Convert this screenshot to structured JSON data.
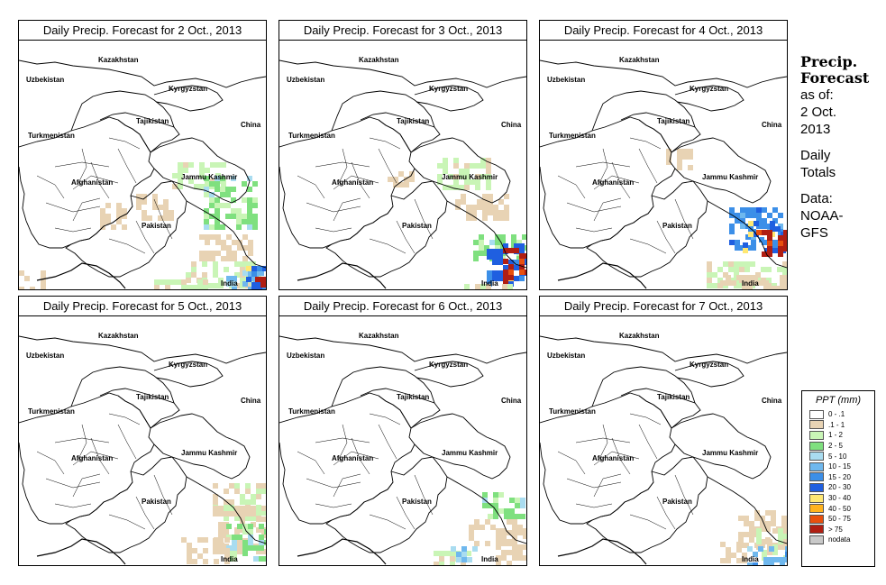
{
  "panels": [
    {
      "title": "Daily Precip. Forecast for  2 Oct., 2013"
    },
    {
      "title": "Daily Precip. Forecast for  3 Oct., 2013"
    },
    {
      "title": "Daily Precip. Forecast for  4 Oct., 2013"
    },
    {
      "title": "Daily Precip. Forecast for  5 Oct., 2013"
    },
    {
      "title": "Daily Precip. Forecast for  6 Oct., 2013"
    },
    {
      "title": "Daily Precip. Forecast for  7 Oct., 2013"
    }
  ],
  "map_labels": {
    "kazakhstan": "Kazakhstan",
    "uzbekistan": "Uzbekistan",
    "kyrgyzstan": "Kyrgyzstan",
    "tajikistan": "Tajikistan",
    "china": "China",
    "turkmenistan": "Turkmenistan",
    "afghanistan": "Afghanistan",
    "jammu_kashmir": "Jammu Kashmir",
    "pakistan": "Pakistan",
    "india": "India"
  },
  "sidebar": {
    "line1": "Precip.",
    "line2": "Forecast",
    "line3": "as of:",
    "line4": "2 Oct.",
    "line5": "2013",
    "line6": "Daily",
    "line7": "Totals",
    "line8": "Data:",
    "line9": "NOAA-",
    "line10": "GFS"
  },
  "legend": {
    "title": "PPT (mm)",
    "items": [
      {
        "label": "0 - .1",
        "color": "#ffffff"
      },
      {
        "label": ".1 - 1",
        "color": "#e8d3b4"
      },
      {
        "label": "1 - 2",
        "color": "#c9f5b6"
      },
      {
        "label": "2 - 5",
        "color": "#7fe07f"
      },
      {
        "label": "5 - 10",
        "color": "#a9dcf0"
      },
      {
        "label": "10 - 15",
        "color": "#6fb8ee"
      },
      {
        "label": "15 - 20",
        "color": "#3c8fe8"
      },
      {
        "label": "20 - 30",
        "color": "#1f5fe0"
      },
      {
        "label": "30 - 40",
        "color": "#ffe873"
      },
      {
        "label": "40 - 50",
        "color": "#ffb31f"
      },
      {
        "label": "50 - 75",
        "color": "#e8500e"
      },
      {
        "label": "> 75",
        "color": "#b01e12"
      },
      {
        "label": "nodata",
        "color": "#c9c9c9"
      }
    ]
  }
}
